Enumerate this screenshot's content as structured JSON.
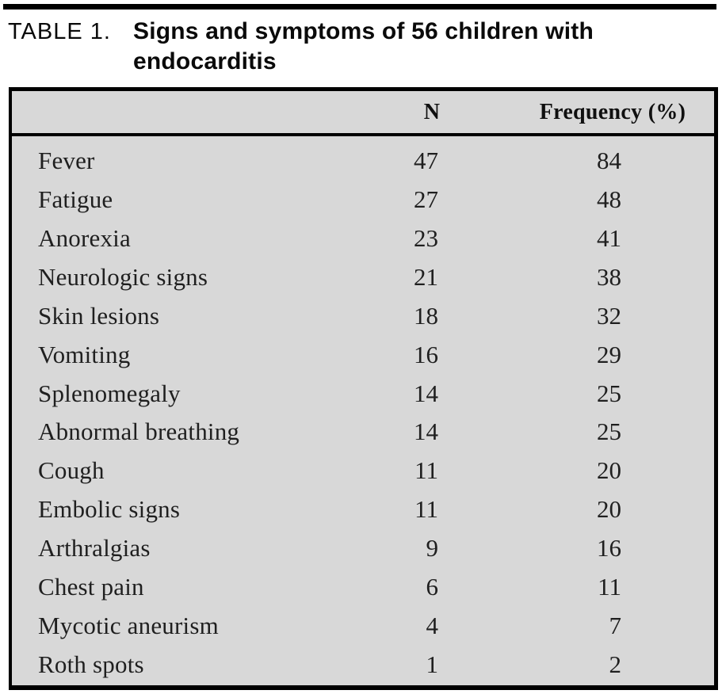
{
  "caption": {
    "label": "TABLE 1.",
    "title_lines": [
      "Signs and symptoms of 56 children with",
      "endocarditis"
    ]
  },
  "table": {
    "header": {
      "symptom": "",
      "n": "N",
      "frequency": "Frequency (%)"
    },
    "rows": [
      {
        "label": "Fever",
        "n": "47",
        "frequency": "84"
      },
      {
        "label": "Fatigue",
        "n": "27",
        "frequency": "48"
      },
      {
        "label": "Anorexia",
        "n": "23",
        "frequency": "41"
      },
      {
        "label": "Neurologic signs",
        "n": "21",
        "frequency": "38"
      },
      {
        "label": "Skin lesions",
        "n": "18",
        "frequency": "32"
      },
      {
        "label": "Vomiting",
        "n": "16",
        "frequency": "29"
      },
      {
        "label": "Splenomegaly",
        "n": "14",
        "frequency": "25"
      },
      {
        "label": "Abnormal breathing",
        "n": "14",
        "frequency": "25"
      },
      {
        "label": "Cough",
        "n": "11",
        "frequency": "20"
      },
      {
        "label": "Embolic signs",
        "n": "11",
        "frequency": "20"
      },
      {
        "label": "Arthralgias",
        "n": "9",
        "frequency": "16"
      },
      {
        "label": "Chest pain",
        "n": "6",
        "frequency": "11"
      },
      {
        "label": "Mycotic aneurism",
        "n": "4",
        "frequency": "7"
      },
      {
        "label": "Roth spots",
        "n": "1",
        "frequency": "2"
      }
    ]
  },
  "colors": {
    "table_background": "#d8d8d8",
    "border": "#000000",
    "text": "#1f1f1f"
  }
}
